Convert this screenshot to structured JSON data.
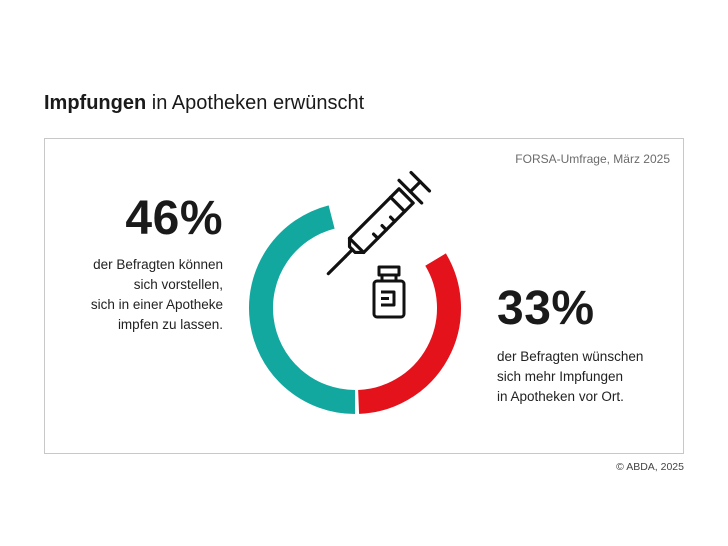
{
  "title": {
    "bold": "Impfungen",
    "rest": " in Apotheken erwünscht"
  },
  "source": "FORSA-Umfrage, März 2025",
  "copyright": "© ABDA, 2025",
  "icons": [
    "syringe-icon",
    "vial-icon"
  ],
  "colors": {
    "teal": "#12a8a0",
    "red": "#e3121b",
    "frame": "#c8c8c8"
  },
  "chart_data": {
    "type": "pie",
    "series": [
      {
        "value": 46,
        "label": "46%",
        "color": "#12a8a0",
        "description": [
          "der Befragten können",
          "sich vorstellen,",
          "sich in einer Apotheke",
          "impfen zu lassen."
        ]
      },
      {
        "value": 33,
        "label": "33%",
        "color": "#e3121b",
        "description": [
          "der Befragten wünschen",
          "sich mehr Impfungen",
          "in Apotheken vor Ort."
        ]
      }
    ]
  }
}
